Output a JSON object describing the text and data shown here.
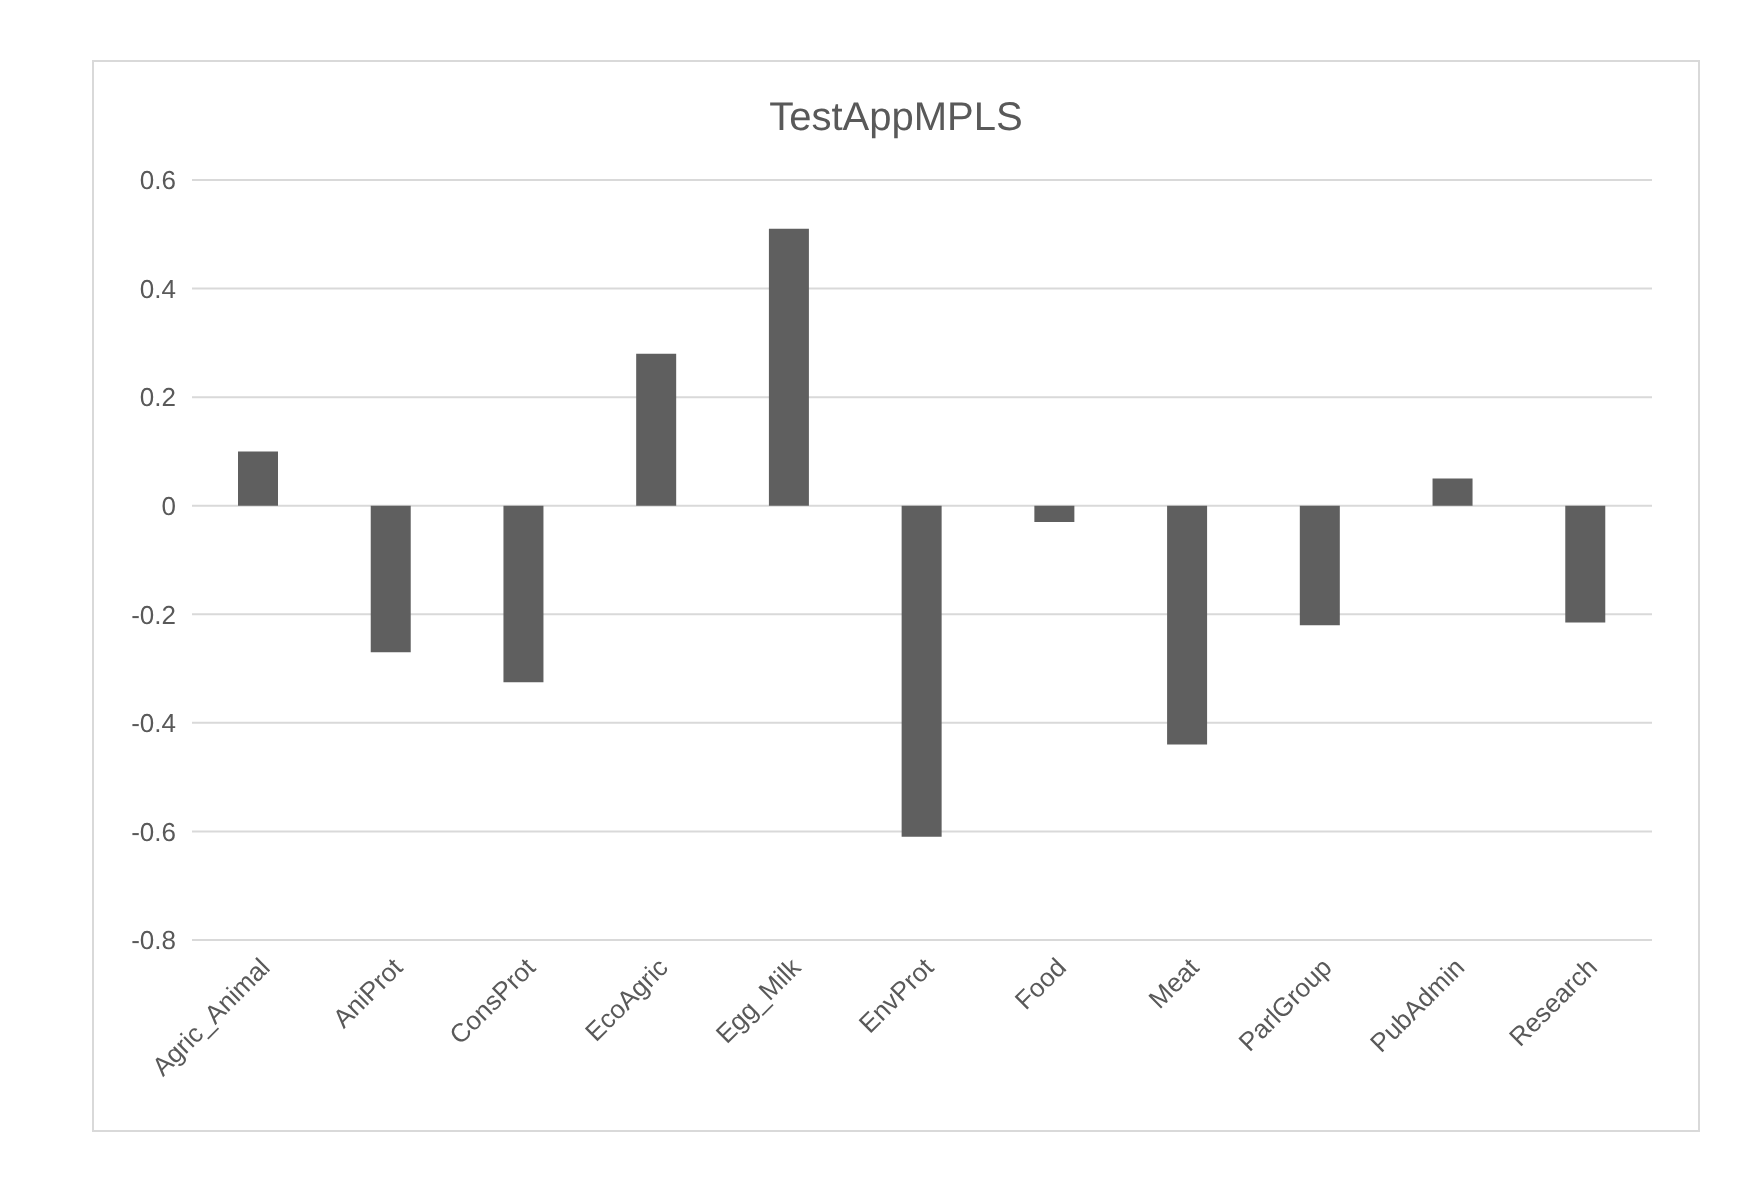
{
  "chart_data": {
    "type": "bar",
    "title": "TestAppMPLS",
    "categories": [
      "Agric_Animal",
      "AniProt",
      "ConsProt",
      "EcoAgric",
      "Egg_Milk",
      "EnvProt",
      "Food",
      "Meat",
      "ParlGroup",
      "PubAdmin",
      "Research"
    ],
    "values": [
      0.1,
      -0.27,
      -0.325,
      0.28,
      0.51,
      -0.61,
      -0.03,
      -0.44,
      -0.22,
      0.05,
      -0.215
    ],
    "color": "#5f5f5f",
    "ylim": [
      -0.8,
      0.6
    ],
    "yticks": [
      -0.8,
      -0.6,
      -0.4,
      -0.2,
      0,
      0.2,
      0.4,
      0.6
    ],
    "grid": "y",
    "legend": false
  }
}
